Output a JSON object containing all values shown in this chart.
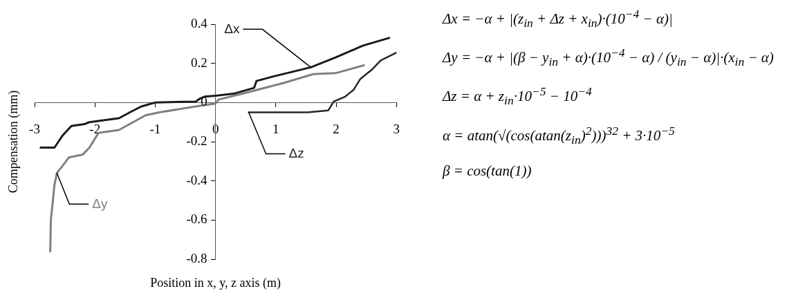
{
  "chart_data": {
    "type": "line",
    "xlabel": "Position in x, y, z axis (m)",
    "ylabel": "Compensation (mm)",
    "xlim": [
      -3,
      3
    ],
    "xticks": [
      -3,
      -2,
      -1,
      0,
      1,
      2,
      3
    ],
    "ylim": [
      -0.8,
      0.4
    ],
    "yticks": [
      -0.8,
      -0.6,
      -0.4,
      -0.2,
      0,
      0.2,
      0.4
    ],
    "grid": false,
    "legend": false,
    "marker": "none",
    "line_style": "solid",
    "series": [
      {
        "name": "Δx",
        "color": "#1a1a1a",
        "x": [
          -2.9,
          -2.67,
          -2.54,
          -2.39,
          -2.17,
          -2.09,
          -1.6,
          -1.42,
          -1.23,
          -1.0,
          -0.33,
          -0.26,
          -0.18,
          0,
          0.3,
          0.64,
          0.68,
          0.98,
          1.58,
          1.99,
          2.44,
          2.88
        ],
        "values": [
          -0.23,
          -0.23,
          -0.17,
          -0.12,
          -0.11,
          -0.1,
          -0.08,
          -0.05,
          -0.02,
          0,
          0.005,
          0.02,
          0.03,
          0.035,
          0.045,
          0.075,
          0.11,
          0.135,
          0.18,
          0.23,
          0.29,
          0.33
        ]
      },
      {
        "name": "Δy",
        "color": "#808080",
        "x": [
          -2.74,
          -2.73,
          -2.67,
          -2.63,
          -2.54,
          -2.43,
          -2.2,
          -2.09,
          -1.94,
          -1.6,
          -1.16,
          -0.93,
          -0.33,
          0,
          0.05,
          0.57,
          1.13,
          1.62,
          1.99,
          2.46
        ],
        "values": [
          -0.76,
          -0.6,
          -0.42,
          -0.36,
          -0.325,
          -0.28,
          -0.265,
          -0.23,
          -0.155,
          -0.14,
          -0.065,
          -0.05,
          -0.02,
          -0.005,
          0.015,
          0.055,
          0.1,
          0.145,
          0.15,
          0.19
        ]
      },
      {
        "name": "Δz",
        "color": "#262626",
        "x": [
          0.55,
          1.53,
          1.87,
          1.96,
          2.15,
          2.29,
          2.4,
          2.6,
          2.74,
          3.0
        ],
        "values": [
          -0.05,
          -0.05,
          -0.04,
          0.005,
          0.03,
          0.065,
          0.12,
          0.17,
          0.215,
          0.255
        ]
      }
    ],
    "annotations": [
      "Δx = −α + |(z$_{in}$ + Δz + x$_{in}$)·(10$^{−4}$ − α)|",
      "Δy = −α + |(β − y$_{in}$ + α)·(10$^{−4}$ − α) / (y$_{in}$ − α)|·(x$_{in}$ − α)",
      "Δz = α + z$_{in}$·10$^{−5}$ − 10$^{−4}$",
      "α = atan(√(cos(atan(z$_{in}$)$^{2}$)))$^{32}$ + 3·10$^{−5}$",
      "β = cos(tan(1))"
    ]
  }
}
